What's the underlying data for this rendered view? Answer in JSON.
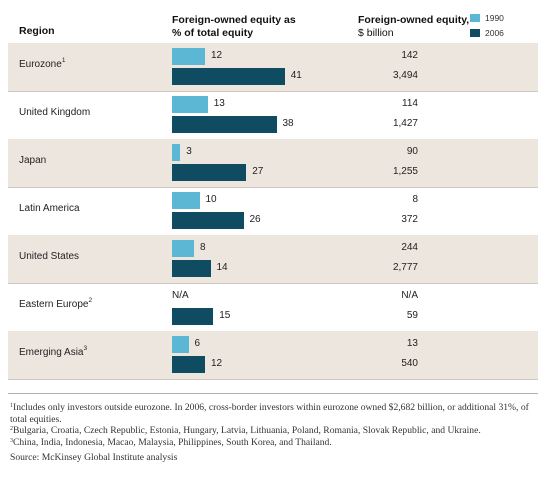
{
  "header": {
    "region": "Region",
    "pct_title": "Foreign-owned equity as",
    "pct_title2": "% of total equity",
    "usd_title": "Foreign-owned equity,",
    "usd_sub": "$ billion"
  },
  "legend": [
    {
      "label": "1990",
      "color": "#5bb7d3"
    },
    {
      "label": "2006",
      "color": "#0f4b61"
    }
  ],
  "chart_data": {
    "type": "bar",
    "categories": [
      "Eurozone",
      "United Kingdom",
      "Japan",
      "Latin America",
      "United States",
      "Eastern Europe",
      "Emerging Asia"
    ],
    "footnote_marks": [
      "1",
      "",
      "",
      "",
      "",
      "2",
      "3"
    ],
    "series": [
      {
        "name": "1990",
        "values": [
          12,
          13,
          3,
          10,
          8,
          null,
          6
        ],
        "labels": [
          "12",
          "13",
          "3",
          "10",
          "8",
          "N/A",
          "6"
        ]
      },
      {
        "name": "2006",
        "values": [
          41,
          38,
          27,
          26,
          14,
          15,
          12
        ],
        "labels": [
          "41",
          "38",
          "27",
          "26",
          "14",
          "15",
          "12"
        ]
      }
    ],
    "usd_billion": {
      "1990": [
        "142",
        "114",
        "90",
        "8",
        "244",
        "N/A",
        "13"
      ],
      "2006": [
        "3,494",
        "1,427",
        "1,255",
        "372",
        "2,777",
        "59",
        "540"
      ]
    },
    "xlim": [
      0,
      50
    ]
  },
  "notes": {
    "n1_mark": "1",
    "n1": "Includes only investors outside eurozone. In 2006, cross-border investors within eurozone owned $2,682 billion, or additional 31%, of total equities.",
    "n2_mark": "2",
    "n2": "Bulgaria, Croatia, Czech Republic, Estonia, Hungary, Latvia, Lithuania, Poland, Romania, Slovak Republic, and Ukraine.",
    "n3_mark": "3",
    "n3": "China, India, Indonesia, Macao, Malaysia, Philippines, South Korea, and Thailand.",
    "source": "Source: McKinsey Global Institute analysis"
  }
}
